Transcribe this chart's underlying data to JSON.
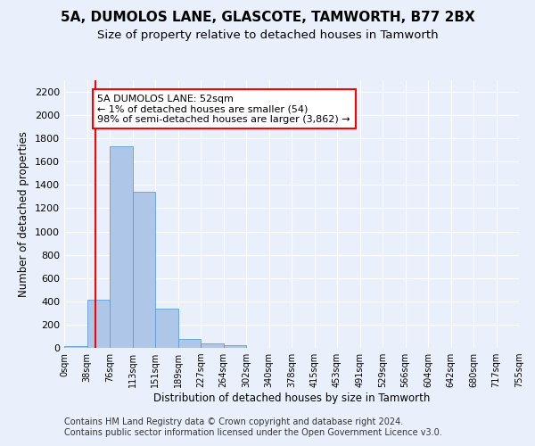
{
  "title1": "5A, DUMOLOS LANE, GLASCOTE, TAMWORTH, B77 2BX",
  "title2": "Size of property relative to detached houses in Tamworth",
  "xlabel": "Distribution of detached houses by size in Tamworth",
  "ylabel": "Number of detached properties",
  "bin_labels": [
    "0sqm",
    "38sqm",
    "76sqm",
    "113sqm",
    "151sqm",
    "189sqm",
    "227sqm",
    "264sqm",
    "302sqm",
    "340sqm",
    "378sqm",
    "415sqm",
    "453sqm",
    "491sqm",
    "529sqm",
    "566sqm",
    "604sqm",
    "642sqm",
    "680sqm",
    "717sqm",
    "755sqm"
  ],
  "bar_values": [
    19,
    415,
    1730,
    1345,
    340,
    80,
    35,
    20,
    0,
    0,
    0,
    0,
    0,
    0,
    0,
    0,
    0,
    0,
    0,
    0
  ],
  "bar_color": "#aec6e8",
  "bar_edge_color": "#5a9fd4",
  "vline_color": "red",
  "annotation_text": "5A DUMOLOS LANE: 52sqm\n← 1% of detached houses are smaller (54)\n98% of semi-detached houses are larger (3,862) →",
  "annotation_box_color": "white",
  "annotation_box_edge": "red",
  "ylim": [
    0,
    2300
  ],
  "yticks": [
    0,
    200,
    400,
    600,
    800,
    1000,
    1200,
    1400,
    1600,
    1800,
    2000,
    2200
  ],
  "bg_color": "#eaf0fb",
  "plot_bg_color": "#eaf0fb",
  "footer1": "Contains HM Land Registry data © Crown copyright and database right 2024.",
  "footer2": "Contains public sector information licensed under the Open Government Licence v3.0.",
  "title1_fontsize": 11,
  "title2_fontsize": 9.5,
  "annotation_fontsize": 8,
  "footer_fontsize": 7,
  "ylabel_fontsize": 8.5,
  "xlabel_fontsize": 8.5
}
